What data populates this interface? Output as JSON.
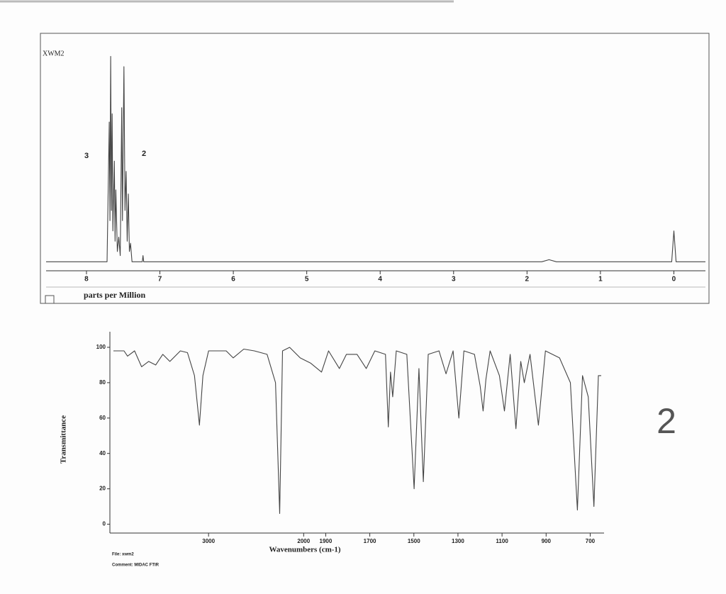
{
  "page_label": "2",
  "chart_data": [
    {
      "type": "line",
      "title": "XWM2",
      "xlabel": "parts per Million",
      "annotations": [
        "3",
        "2"
      ],
      "xlim": [
        8.55,
        -0.43
      ],
      "ylim": [
        -3,
        105
      ],
      "xticks": [
        8,
        7,
        6,
        5,
        4,
        3,
        2,
        1,
        0
      ],
      "series": [
        {
          "color": "#444",
          "x": [
            8.55,
            7.8,
            7.72,
            7.69,
            7.68,
            7.67,
            7.66,
            7.65,
            7.64,
            7.62,
            7.61,
            7.6,
            7.58,
            7.56,
            7.54,
            7.52,
            7.51,
            7.49,
            7.475,
            7.46,
            7.445,
            7.43,
            7.415,
            7.4,
            7.38,
            7.24,
            7.23,
            7.22,
            1.8,
            1.7,
            1.6,
            0.03,
            0,
            -0.03,
            -0.43
          ],
          "values": [
            0,
            0,
            0,
            68,
            20,
            100,
            25,
            72,
            15,
            49,
            10,
            35,
            5,
            12,
            3,
            75,
            20,
            95,
            25,
            44,
            10,
            33,
            5,
            9,
            0,
            0,
            3,
            0,
            0,
            1,
            0,
            0,
            15,
            0,
            0
          ]
        }
      ]
    },
    {
      "type": "line",
      "xlabel": "Wavenumbers (cm-1)",
      "ylabel": "Transmittance",
      "file_label": "File: xwm2",
      "comment_label": "Comment: MIDAC FTIR",
      "xlim": [
        4000,
        650
      ],
      "xbreak": 2000,
      "ylim": [
        -5,
        108
      ],
      "xticks": [
        3000,
        2000,
        1900,
        1700,
        1500,
        1300,
        1100,
        900,
        700
      ],
      "yticks": [
        0,
        20,
        40,
        60,
        80,
        100
      ],
      "series": [
        {
          "color": "#444",
          "x": [
            4000,
            3889,
            3852,
            3778,
            3704,
            3630,
            3556,
            3481,
            3407,
            3296,
            3222,
            3148,
            3096,
            3059,
            3000,
            2815,
            2741,
            2630,
            2519,
            2385,
            2296,
            2252,
            2222,
            2148,
            2037,
            1968,
            1919,
            1887,
            1838,
            1806,
            1758,
            1716,
            1677,
            1629,
            1616,
            1606,
            1596,
            1580,
            1532,
            1499,
            1477,
            1457,
            1435,
            1386,
            1354,
            1322,
            1296,
            1273,
            1225,
            1199,
            1186,
            1173,
            1154,
            1112,
            1089,
            1063,
            1037,
            1015,
            999,
            973,
            935,
            903,
            839,
            790,
            758,
            735,
            709,
            683,
            663,
            650
          ],
          "values": [
            98,
            98,
            95,
            98,
            89,
            92,
            90,
            96,
            92,
            98,
            97,
            84,
            56,
            84,
            98,
            98,
            94,
            99,
            98,
            96,
            80,
            6,
            98,
            100,
            94,
            91,
            86,
            98,
            88,
            96,
            96,
            88,
            98,
            96,
            55,
            86,
            72,
            98,
            96,
            20,
            88,
            24,
            96,
            98,
            85,
            98,
            60,
            98,
            96,
            78,
            64,
            82,
            98,
            84,
            64,
            96,
            54,
            92,
            80,
            96,
            56,
            98,
            94,
            80,
            8,
            84,
            72,
            10,
            84,
            84
          ]
        }
      ]
    }
  ]
}
